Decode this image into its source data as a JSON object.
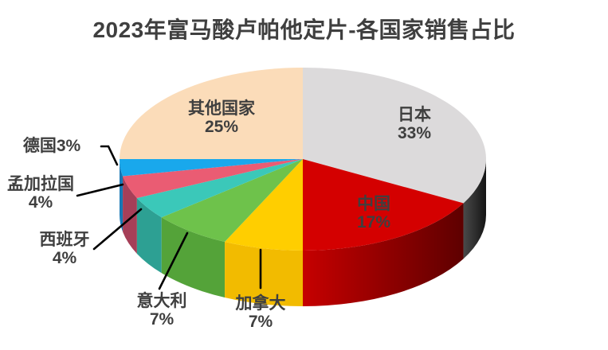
{
  "title": "2023年富马酸卢帕他定片-各国家销售占比",
  "chart_data": {
    "type": "pie",
    "style": "3d",
    "title": "2023年富马酸卢帕他定片-各国家销售占比",
    "unit": "%",
    "start_angle_deg": 0,
    "direction": "clockwise",
    "legend": "none",
    "categories": [
      "日本",
      "中国",
      "加拿大",
      "意大利",
      "西班牙",
      "孟加拉国",
      "德国",
      "其他国家"
    ],
    "values": [
      33,
      17,
      7,
      7,
      4,
      4,
      3,
      25
    ],
    "slugs": [
      "japan",
      "china",
      "canada",
      "italy",
      "spain",
      "bangladesh",
      "germany",
      "others"
    ],
    "colors": [
      "#dcdadb",
      "#d40000",
      "#ffce00",
      "#6ec24b",
      "#3bc8b9",
      "#ea5c73",
      "#19a8ec",
      "#fbdcb9"
    ],
    "side_colors": [
      "#2b2b2b",
      "#9a0000",
      "#f2bb00",
      "#54a339",
      "#2da093",
      "#a63f58",
      "#1777b4",
      "#d9b27e"
    ],
    "label_color": "#3f3f3f",
    "leader_line_color": "#000000",
    "labels": [
      {
        "line1": "日本",
        "line2": "33%"
      },
      {
        "line1": "中国",
        "line2": "17%"
      },
      {
        "line1": "加拿大",
        "line2": "7%"
      },
      {
        "line1": "意大利",
        "line2": "7%"
      },
      {
        "line1": "西班牙",
        "line2": "4%"
      },
      {
        "line1": "孟加拉国",
        "line2": "4%"
      },
      {
        "line1": "德国3%",
        "line2": ""
      },
      {
        "line1": "其他国家",
        "line2": "25%"
      }
    ]
  }
}
